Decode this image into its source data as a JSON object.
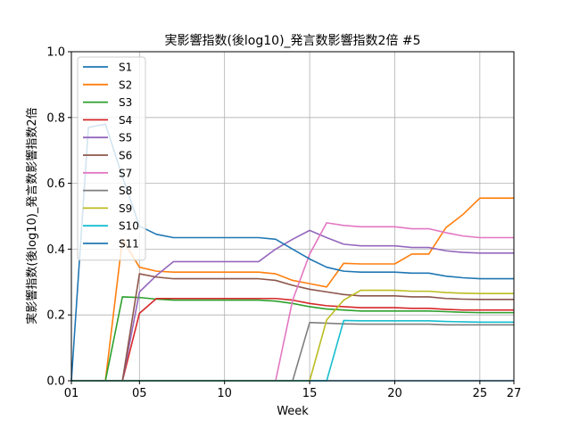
{
  "chart_data": {
    "type": "line",
    "title": "実影響指数(後log10)_発言数影響指数2倍 #5",
    "xlabel": "Week",
    "ylabel": "実影響指数(後log10)_発言数影響指数2倍",
    "xlim": [
      1,
      27
    ],
    "ylim": [
      0,
      1.0
    ],
    "x_ticks": [
      1,
      5,
      10,
      15,
      20,
      25,
      27
    ],
    "x_tick_labels": [
      "01",
      "05",
      "10",
      "15",
      "20",
      "25",
      "27"
    ],
    "y_ticks": [
      0.0,
      0.2,
      0.4,
      0.6,
      0.8,
      1.0
    ],
    "y_tick_labels": [
      "0.0",
      "0.2",
      "0.4",
      "0.6",
      "0.8",
      "1.0"
    ],
    "grid": true,
    "legend_position": "top-left",
    "x": [
      1,
      2,
      3,
      4,
      5,
      6,
      7,
      8,
      9,
      10,
      11,
      12,
      13,
      14,
      15,
      16,
      17,
      18,
      19,
      20,
      21,
      22,
      23,
      24,
      25,
      26,
      27
    ],
    "series": [
      {
        "name": "S1",
        "color": "#1f77b4",
        "values": [
          0,
          0,
          0,
          0,
          0,
          0,
          0,
          0,
          0,
          0,
          0,
          0,
          0,
          0,
          0,
          0,
          0,
          0,
          0,
          0,
          0,
          0,
          0,
          0,
          0,
          0,
          0
        ]
      },
      {
        "name": "S2",
        "color": "#ff7f0e",
        "values": [
          0,
          0,
          0,
          0.43,
          0.345,
          0.333,
          0.33,
          0.33,
          0.33,
          0.33,
          0.33,
          0.33,
          0.325,
          0.305,
          0.295,
          0.285,
          0.357,
          0.355,
          0.355,
          0.355,
          0.385,
          0.385,
          0.465,
          0.505,
          0.555,
          0.555,
          0.555
        ]
      },
      {
        "name": "S3",
        "color": "#2ca02c",
        "values": [
          0,
          0,
          0,
          0.255,
          0.253,
          0.248,
          0.245,
          0.245,
          0.245,
          0.245,
          0.245,
          0.245,
          0.242,
          0.235,
          0.225,
          0.218,
          0.215,
          0.212,
          0.212,
          0.212,
          0.212,
          0.212,
          0.21,
          0.208,
          0.207,
          0.207,
          0.207
        ]
      },
      {
        "name": "S4",
        "color": "#d62728",
        "values": [
          0,
          0,
          0,
          0,
          0.205,
          0.25,
          0.25,
          0.25,
          0.25,
          0.25,
          0.25,
          0.25,
          0.25,
          0.245,
          0.235,
          0.228,
          0.225,
          0.222,
          0.222,
          0.222,
          0.22,
          0.22,
          0.217,
          0.215,
          0.215,
          0.215,
          0.215
        ]
      },
      {
        "name": "S5",
        "color": "#9467bd",
        "values": [
          0,
          0,
          0,
          0,
          0.27,
          0.32,
          0.362,
          0.362,
          0.362,
          0.362,
          0.362,
          0.362,
          0.4,
          0.43,
          0.457,
          0.435,
          0.415,
          0.41,
          0.41,
          0.41,
          0.405,
          0.405,
          0.395,
          0.39,
          0.388,
          0.388,
          0.388
        ]
      },
      {
        "name": "S6",
        "color": "#8c564b",
        "values": [
          0,
          0,
          0,
          0,
          0.325,
          0.315,
          0.31,
          0.31,
          0.31,
          0.31,
          0.31,
          0.31,
          0.305,
          0.29,
          0.278,
          0.27,
          0.262,
          0.258,
          0.258,
          0.258,
          0.255,
          0.255,
          0.25,
          0.248,
          0.247,
          0.247,
          0.247
        ]
      },
      {
        "name": "S7",
        "color": "#e377c2",
        "values": [
          0,
          0,
          0,
          0,
          0,
          0,
          0,
          0,
          0,
          0,
          0,
          0,
          0,
          0.245,
          0.385,
          0.48,
          0.472,
          0.468,
          0.468,
          0.468,
          0.462,
          0.462,
          0.45,
          0.44,
          0.435,
          0.435,
          0.435
        ]
      },
      {
        "name": "S8",
        "color": "#7f7f7f",
        "values": [
          0,
          0,
          0,
          0,
          0,
          0,
          0,
          0,
          0,
          0,
          0,
          0,
          0,
          0,
          0.177,
          0.175,
          0.173,
          0.172,
          0.172,
          0.172,
          0.172,
          0.172,
          0.17,
          0.17,
          0.17,
          0.17,
          0.17
        ]
      },
      {
        "name": "S9",
        "color": "#bcbd22",
        "values": [
          0,
          0,
          0,
          0,
          0,
          0,
          0,
          0,
          0,
          0,
          0,
          0,
          0,
          0,
          0,
          0.185,
          0.245,
          0.275,
          0.275,
          0.275,
          0.272,
          0.272,
          0.268,
          0.266,
          0.265,
          0.265,
          0.265
        ]
      },
      {
        "name": "S10",
        "color": "#17becf",
        "values": [
          0,
          0,
          0,
          0,
          0,
          0,
          0,
          0,
          0,
          0,
          0,
          0,
          0,
          0,
          0,
          0,
          0.183,
          0.182,
          0.182,
          0.182,
          0.182,
          0.182,
          0.18,
          0.179,
          0.178,
          0.178,
          0.178
        ]
      },
      {
        "name": "S11",
        "color": "#1f77b4",
        "values": [
          0,
          0.77,
          0.78,
          0.62,
          0.47,
          0.445,
          0.435,
          0.435,
          0.435,
          0.435,
          0.435,
          0.435,
          0.43,
          0.4,
          0.37,
          0.345,
          0.333,
          0.33,
          0.33,
          0.33,
          0.327,
          0.327,
          0.318,
          0.313,
          0.31,
          0.31,
          0.31
        ]
      }
    ]
  }
}
